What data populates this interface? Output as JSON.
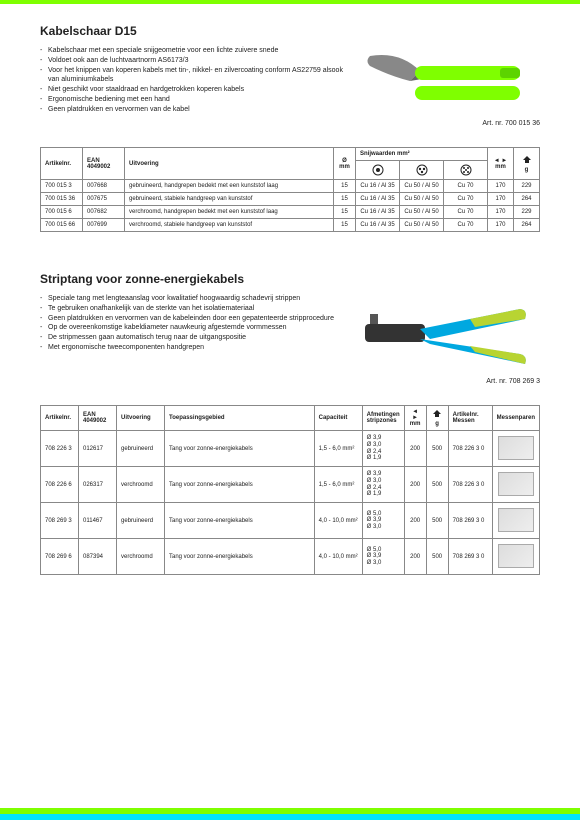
{
  "section1": {
    "title": "Kabelschaar D15",
    "features": [
      "Kabelschaar met een speciale snijgeometrie voor een lichte zuivere snede",
      "Voldoet ook aan de luchtvaartnorm AS6173/3",
      "Voor het knippen van koperen kabels met tin-, nikkel- en zilvercoating conform AS22759 alsook van aluminiumkabels",
      "Niet geschikt voor staaldraad en hardgetrokken koperen kabels",
      "Ergonomische bediening met een hand",
      "Geen platdrukken en vervormen van de kabel"
    ],
    "artnr": "Art. nr. 700 015 36",
    "table": {
      "headers": [
        "Artikelnr.",
        "EAN 4049002",
        "Uitvoering",
        "Ø mm",
        "Snijwaarden mm²",
        "◄ ► mm",
        "g"
      ],
      "rows": [
        {
          "art": "700 015 3",
          "ean": "007668",
          "uit": "gebruineerd, handgrepen bedekt met een kunststof laag",
          "dia": "15",
          "s1": "Cu 16 / Al 35",
          "s2": "Cu 50 / Al 50",
          "s3": "Cu 70",
          "len": "170",
          "g": "229"
        },
        {
          "art": "700 015 36",
          "ean": "007675",
          "uit": "gebruineerd, stabiele handgreep van kunststof",
          "dia": "15",
          "s1": "Cu 16 / Al 35",
          "s2": "Cu 50 / Al 50",
          "s3": "Cu 70",
          "len": "170",
          "g": "264"
        },
        {
          "art": "700 015 6",
          "ean": "007682",
          "uit": "verchroomd, handgrepen bedekt met een kunststof laag",
          "dia": "15",
          "s1": "Cu 16 / Al 35",
          "s2": "Cu 50 / Al 50",
          "s3": "Cu 70",
          "len": "170",
          "g": "229"
        },
        {
          "art": "700 015 66",
          "ean": "007699",
          "uit": "verchroomd, stabiele handgreep van kunststof",
          "dia": "15",
          "s1": "Cu 16 / Al 35",
          "s2": "Cu 50 / Al 50",
          "s3": "Cu 70",
          "len": "170",
          "g": "264"
        }
      ]
    }
  },
  "section2": {
    "title": "Striptang voor zonne-energiekabels",
    "features": [
      "Speciale tang met lengteaanslag voor kwalitatief hoogwaardig schadevrij strippen",
      "Te gebruiken onafhankelijk van de sterkte van het isolatiemateriaal",
      "Geen platdrukken en vervormen van de kabeleinden door een gepatenteerde stripprocedure",
      "Op de overeenkomstige kabeldiameter nauwkeurig afgestemde vormmessen",
      "De stripmessen gaan automatisch terug naar de uitgangspositie",
      "Met ergonomische tweecomponenten handgrepen"
    ],
    "artnr": "Art. nr. 708 269 3",
    "table": {
      "headers": [
        "Artikelnr.",
        "EAN 4049002",
        "Uitvoering",
        "Toepassingsgebied",
        "Capaciteit",
        "Afmetingen stripzones",
        "◄ ► mm",
        "g",
        "Artikelnr. Messen",
        "Messenparen"
      ],
      "rows": [
        {
          "art": "708 226 3",
          "ean": "012617",
          "uit": "gebruineerd",
          "toe": "Tang voor zonne-energiekabels",
          "cap": "1,5 - 6,0 mm²",
          "afm": "Ø 3,9\nØ 3,0\nØ 2,4\nØ 1,9",
          "len": "200",
          "g": "500",
          "mes": "708 226 3 0"
        },
        {
          "art": "708 226 6",
          "ean": "026317",
          "uit": "verchroomd",
          "toe": "Tang voor zonne-energiekabels",
          "cap": "1,5 - 6,0 mm²",
          "afm": "Ø 3,9\nØ 3,0\nØ 2,4\nØ 1,9",
          "len": "200",
          "g": "500",
          "mes": "708 226 3 0"
        },
        {
          "art": "708 269 3",
          "ean": "011467",
          "uit": "gebruineerd",
          "toe": "Tang voor zonne-energiekabels",
          "cap": "4,0 - 10,0 mm²",
          "afm": "Ø 5,0\nØ 3,9\nØ 3,0",
          "len": "200",
          "g": "500",
          "mes": "708 269 3 0"
        },
        {
          "art": "708 269 6",
          "ean": "087394",
          "uit": "verchroomd",
          "toe": "Tang voor zonne-energiekabels",
          "cap": "4,0 - 10,0 mm²",
          "afm": "Ø 5,0\nØ 3,9\nØ 3,0",
          "len": "200",
          "g": "500",
          "mes": "708 269 3 0"
        }
      ]
    }
  },
  "colors": {
    "handle1": "#7fff00",
    "handle2a": "#00a8e0",
    "handle2b": "#b8d432",
    "metal": "#9aa"
  }
}
